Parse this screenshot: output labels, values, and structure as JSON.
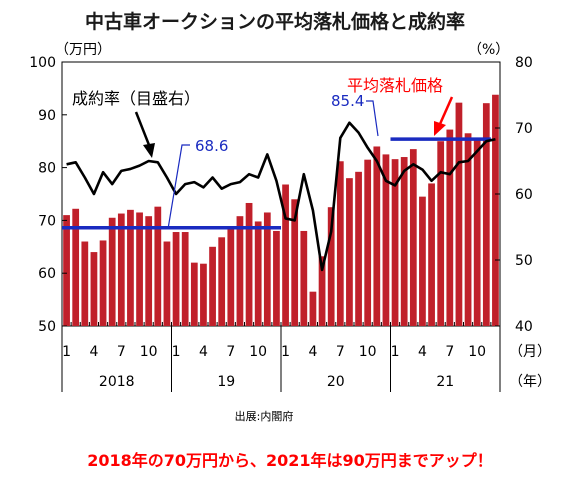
{
  "chart_data": {
    "type": "bar",
    "title": "中古車オークションの平均落札価格と成約率",
    "left_axis": {
      "unit": "（万円）",
      "ticks": [
        "100",
        "90",
        "80",
        "70",
        "60",
        "50"
      ],
      "ylim": [
        50,
        100
      ]
    },
    "right_axis": {
      "unit": "（%）",
      "ticks": [
        "80",
        "70",
        "60",
        "50",
        "40"
      ],
      "ylim": [
        40,
        80
      ]
    },
    "x_month_ticks": [
      "1",
      "4",
      "7",
      "10",
      "1",
      "4",
      "7",
      "10",
      "1",
      "4",
      "7",
      "10",
      "1",
      "4",
      "7",
      "10"
    ],
    "x_unit_month": "（月）",
    "x_unit_year": "（年）",
    "years": [
      "2018",
      "19",
      "20",
      "21"
    ],
    "series": [
      {
        "name": "平均落札価格",
        "type": "bar",
        "axis": "left",
        "color": "#c0202a",
        "values": [
          71,
          72.2,
          66,
          64,
          66.2,
          70.5,
          71.3,
          72,
          71.5,
          70.8,
          72.6,
          66,
          67.8,
          67.8,
          62,
          61.8,
          65,
          66.8,
          68.4,
          70.8,
          73.3,
          69.8,
          71.5,
          68,
          76.8,
          74,
          68,
          56.5,
          63.2,
          72.5,
          81.2,
          78,
          79.2,
          81.5,
          84,
          82.5,
          81.6,
          82,
          83.5,
          74.5,
          77,
          85,
          87.2,
          92.3,
          86.5,
          85.7,
          92.2,
          93.8
        ]
      },
      {
        "name": "成約率（目盛右）",
        "type": "line",
        "axis": "right",
        "color": "#000000",
        "values": [
          64.5,
          64.8,
          62.5,
          60,
          63.3,
          61.5,
          63.5,
          63.8,
          64.3,
          65,
          64.8,
          62.5,
          60,
          61.5,
          61.8,
          61,
          62.5,
          60.8,
          61.5,
          61.8,
          63,
          62.5,
          66,
          62,
          56.3,
          56,
          63,
          57.5,
          48.5,
          54.3,
          68.5,
          70.8,
          69.3,
          67,
          65,
          62,
          61.3,
          63.5,
          64.5,
          63.7,
          62,
          63.3,
          63,
          64.8,
          65,
          66.5,
          68,
          68.3
        ]
      }
    ],
    "annotations": [
      {
        "text": "68.6",
        "value": 68.6,
        "color": "#1a2bc0"
      },
      {
        "text": "85.4",
        "value": 85.4,
        "color": "#1a2bc0"
      },
      {
        "text": "成約率（目盛右）",
        "color": "#000000"
      },
      {
        "text": "平均落札価格",
        "color": "#ff0000"
      }
    ]
  },
  "source": "出展:内閣府",
  "caption": "2018年の70万円から、2021年は90万円までアップ！"
}
